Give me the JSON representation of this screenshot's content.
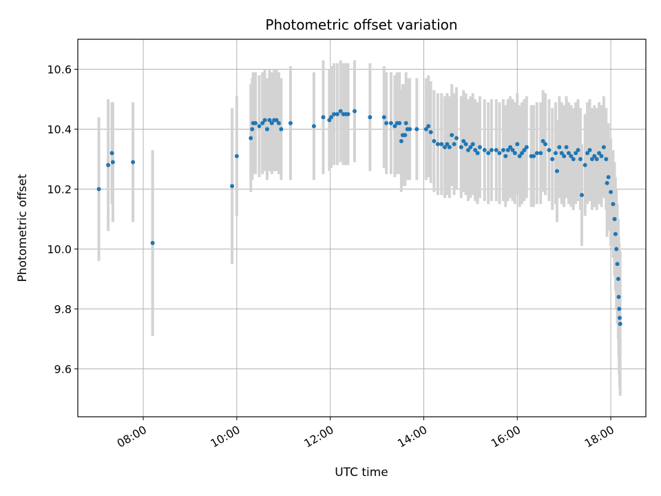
{
  "chart_data": {
    "type": "scatter",
    "title": "Photometric offset variation",
    "xlabel": "UTC time",
    "ylabel": "Photometric offset",
    "x_unit": "hours UTC",
    "xlim": [
      6.6,
      18.75
    ],
    "ylim": [
      9.44,
      10.7
    ],
    "xticks": [
      8,
      10,
      12,
      14,
      16,
      18
    ],
    "xtick_labels": [
      "08:00",
      "10:00",
      "12:00",
      "14:00",
      "16:00",
      "18:00"
    ],
    "yticks": [
      9.6,
      9.8,
      10.0,
      10.2,
      10.4,
      10.6
    ],
    "ytick_labels": [
      "9.6",
      "9.8",
      "10.0",
      "10.2",
      "10.4",
      "10.6"
    ],
    "grid": true,
    "colors": {
      "points": "#1f77b4",
      "errorbars": "#d3d3d3",
      "grid": "#b0b0b0"
    },
    "series": [
      {
        "x": [
          7.05,
          7.25,
          7.33,
          7.35,
          7.78,
          8.2,
          9.9,
          10.0,
          10.3,
          10.33,
          10.35,
          10.4,
          10.48,
          10.55,
          10.6,
          10.65,
          10.7,
          10.75,
          10.8,
          10.85,
          10.9,
          10.95,
          11.15,
          11.65,
          11.85,
          11.98,
          12.02,
          12.08,
          12.15,
          12.22,
          12.28,
          12.33,
          12.38,
          12.52,
          12.85,
          13.15,
          13.2,
          13.3,
          13.38,
          13.43,
          13.48,
          13.52,
          13.55,
          13.6,
          13.62,
          13.65,
          13.7,
          13.85,
          14.05,
          14.1,
          14.15,
          14.22,
          14.3,
          14.38,
          14.45,
          14.5,
          14.55,
          14.6,
          14.65,
          14.7,
          14.8,
          14.85,
          14.9,
          14.95,
          15.0,
          15.05,
          15.1,
          15.15,
          15.2,
          15.3,
          15.38,
          15.45,
          15.55,
          15.62,
          15.7,
          15.75,
          15.8,
          15.85,
          15.9,
          15.95,
          16.0,
          16.05,
          16.1,
          16.15,
          16.2,
          16.3,
          16.35,
          16.42,
          16.5,
          16.55,
          16.6,
          16.68,
          16.75,
          16.82,
          16.85,
          16.9,
          16.95,
          17.0,
          17.05,
          17.1,
          17.15,
          17.2,
          17.25,
          17.3,
          17.35,
          17.38,
          17.45,
          17.5,
          17.55,
          17.6,
          17.65,
          17.7,
          17.75,
          17.8,
          17.85,
          17.9,
          17.92,
          17.95,
          18.0,
          18.05,
          18.08,
          18.1,
          18.12,
          18.14,
          18.16,
          18.17,
          18.18,
          18.19,
          18.2
        ],
        "y": [
          10.2,
          10.28,
          10.32,
          10.29,
          10.29,
          10.02,
          10.21,
          10.31,
          10.37,
          10.4,
          10.42,
          10.42,
          10.41,
          10.42,
          10.43,
          10.4,
          10.43,
          10.42,
          10.43,
          10.43,
          10.42,
          10.4,
          10.42,
          10.41,
          10.44,
          10.43,
          10.44,
          10.45,
          10.45,
          10.46,
          10.45,
          10.45,
          10.45,
          10.46,
          10.44,
          10.44,
          10.42,
          10.42,
          10.41,
          10.42,
          10.42,
          10.36,
          10.38,
          10.38,
          10.42,
          10.4,
          10.4,
          10.4,
          10.4,
          10.41,
          10.39,
          10.36,
          10.35,
          10.35,
          10.34,
          10.35,
          10.34,
          10.38,
          10.35,
          10.37,
          10.34,
          10.36,
          10.35,
          10.33,
          10.34,
          10.35,
          10.33,
          10.32,
          10.34,
          10.33,
          10.32,
          10.33,
          10.33,
          10.32,
          10.33,
          10.31,
          10.33,
          10.34,
          10.33,
          10.32,
          10.35,
          10.31,
          10.32,
          10.33,
          10.34,
          10.31,
          10.31,
          10.32,
          10.32,
          10.36,
          10.35,
          10.33,
          10.3,
          10.32,
          10.26,
          10.34,
          10.32,
          10.31,
          10.34,
          10.32,
          10.31,
          10.3,
          10.32,
          10.33,
          10.3,
          10.18,
          10.28,
          10.32,
          10.33,
          10.3,
          10.31,
          10.3,
          10.32,
          10.31,
          10.34,
          10.3,
          10.22,
          10.24,
          10.19,
          10.15,
          10.1,
          10.05,
          10.0,
          9.95,
          9.9,
          9.84,
          9.8,
          9.77,
          9.75
        ],
        "yerr": [
          0.24,
          0.22,
          0.17,
          0.2,
          0.2,
          0.31,
          0.26,
          0.2,
          0.18,
          0.17,
          0.17,
          0.17,
          0.17,
          0.17,
          0.17,
          0.17,
          0.17,
          0.17,
          0.17,
          0.17,
          0.17,
          0.17,
          0.19,
          0.18,
          0.19,
          0.17,
          0.17,
          0.17,
          0.17,
          0.17,
          0.17,
          0.17,
          0.17,
          0.17,
          0.18,
          0.17,
          0.17,
          0.17,
          0.17,
          0.17,
          0.17,
          0.17,
          0.17,
          0.17,
          0.17,
          0.17,
          0.17,
          0.17,
          0.17,
          0.17,
          0.17,
          0.17,
          0.17,
          0.17,
          0.17,
          0.17,
          0.17,
          0.17,
          0.17,
          0.17,
          0.17,
          0.17,
          0.17,
          0.17,
          0.17,
          0.17,
          0.17,
          0.17,
          0.17,
          0.17,
          0.17,
          0.17,
          0.17,
          0.17,
          0.17,
          0.17,
          0.17,
          0.17,
          0.17,
          0.17,
          0.17,
          0.17,
          0.17,
          0.17,
          0.17,
          0.17,
          0.17,
          0.17,
          0.17,
          0.17,
          0.17,
          0.17,
          0.17,
          0.17,
          0.17,
          0.17,
          0.17,
          0.17,
          0.17,
          0.17,
          0.17,
          0.17,
          0.17,
          0.17,
          0.17,
          0.17,
          0.17,
          0.17,
          0.17,
          0.17,
          0.17,
          0.17,
          0.17,
          0.17,
          0.17,
          0.17,
          0.18,
          0.18,
          0.18,
          0.18,
          0.19,
          0.19,
          0.2,
          0.2,
          0.2,
          0.2,
          0.22,
          0.23,
          0.24
        ]
      }
    ]
  }
}
